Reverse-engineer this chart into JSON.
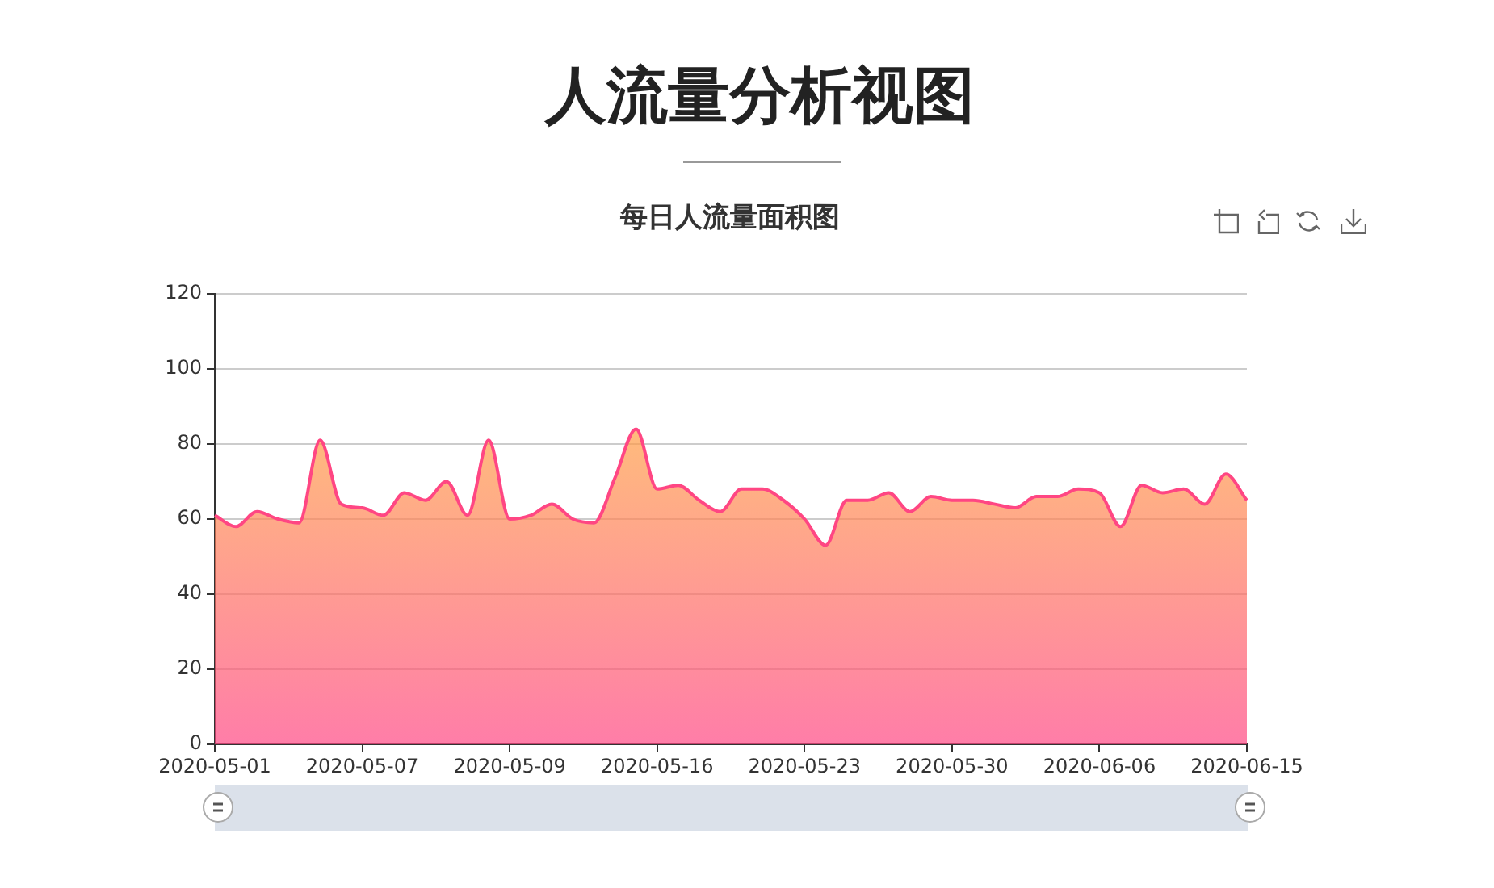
{
  "chart_data": {
    "type": "area",
    "title": "人流量分析视图",
    "subtitle": "每日人流量面积图",
    "categories": [
      "2020-05-01",
      null,
      null,
      null,
      null,
      null,
      null,
      "2020-05-07",
      null,
      null,
      null,
      null,
      null,
      null,
      "2020-05-09",
      null,
      null,
      null,
      null,
      null,
      null,
      "2020-05-16",
      null,
      null,
      null,
      null,
      null,
      null,
      "2020-05-23",
      null,
      null,
      null,
      null,
      null,
      null,
      "2020-05-30",
      null,
      null,
      null,
      null,
      null,
      null,
      "2020-06-06",
      null,
      null,
      null,
      null,
      null,
      null,
      "2020-06-15"
    ],
    "series": [
      {
        "color": "#ff4683",
        "values": [
          61,
          58,
          62,
          60,
          59,
          81,
          64,
          63,
          61,
          67,
          65,
          70,
          61,
          81,
          60,
          61,
          64,
          60,
          59,
          71,
          84,
          68,
          69,
          65,
          62,
          68,
          68,
          65,
          60,
          53,
          65,
          65,
          67,
          62,
          66,
          65,
          65,
          64,
          63,
          66,
          66,
          68,
          67,
          58,
          69,
          67,
          68,
          64,
          72,
          65
        ]
      }
    ],
    "ylim": [
      0,
      120
    ],
    "yticks": [
      0,
      20,
      40,
      60,
      80,
      100,
      120
    ],
    "grid": "y",
    "marker": "none"
  }
}
